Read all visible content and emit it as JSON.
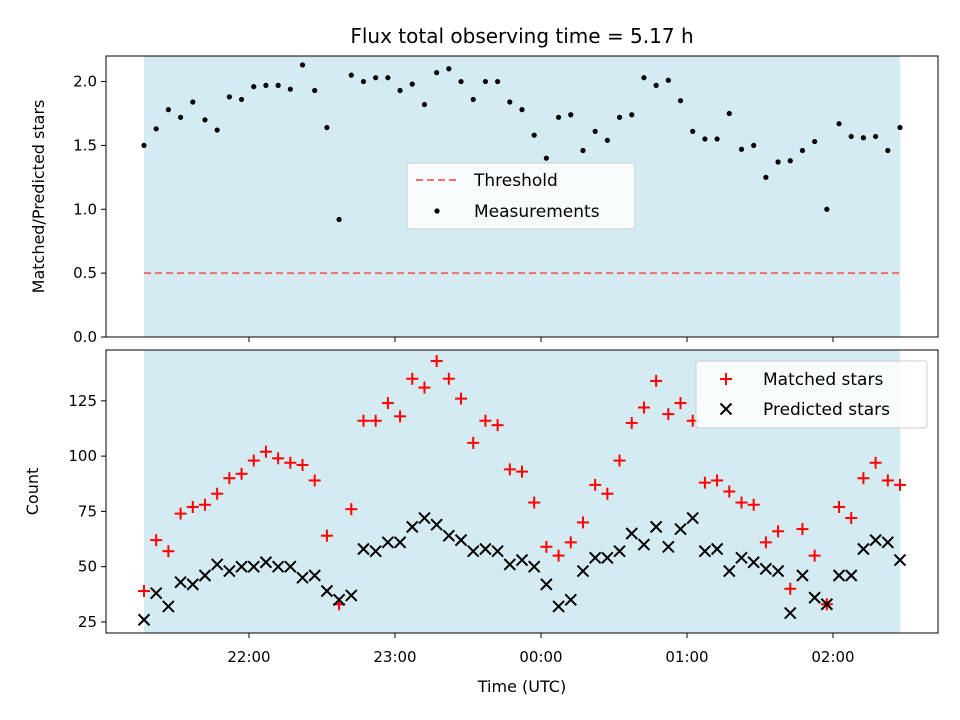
{
  "chart_data": [
    {
      "type": "scatter",
      "title": "Flux total observing time = 5.17 h",
      "xlabel": "",
      "ylabel": "Matched/Predicted stars",
      "ylim": [
        0,
        2.2
      ],
      "y_ticks": [
        "0.0",
        "0.5",
        "1.0",
        "1.5",
        "2.0"
      ],
      "legend": {
        "placement": "center",
        "entries": [
          "Threshold",
          "Measurements"
        ]
      },
      "threshold": 0.5,
      "colors": {
        "threshold": "#f07070",
        "measurements": "#000000",
        "shade": "#d4ebf1"
      },
      "series": [
        {
          "name": "Measurements",
          "values": [
            1.5,
            1.63,
            1.78,
            1.72,
            1.84,
            1.7,
            1.62,
            1.88,
            1.86,
            1.96,
            1.97,
            1.97,
            1.94,
            2.13,
            1.93,
            1.64,
            0.92,
            2.05,
            2.0,
            2.03,
            2.03,
            1.93,
            1.98,
            1.82,
            2.07,
            2.1,
            2.0,
            1.86,
            2.0,
            2.0,
            1.84,
            1.78,
            1.58,
            1.4,
            1.72,
            1.74,
            1.46,
            1.61,
            1.54,
            1.72,
            1.74,
            2.03,
            1.97,
            2.01,
            1.85,
            1.61,
            1.55,
            1.55,
            1.75,
            1.47,
            1.5,
            1.25,
            1.37,
            1.38,
            1.46,
            1.53,
            1.0,
            1.67,
            1.57,
            1.56,
            1.57,
            1.46,
            1.64
          ]
        }
      ]
    },
    {
      "type": "scatter",
      "title": "",
      "xlabel": "Time (UTC)",
      "ylabel": "Count",
      "ylim": [
        20,
        148
      ],
      "y_ticks": [
        "25",
        "50",
        "75",
        "100",
        "125"
      ],
      "x_ticks": [
        "22:00",
        "23:00",
        "00:00",
        "01:00",
        "02:00"
      ],
      "legend": {
        "placement": "top-right",
        "entries": [
          "Matched stars",
          "Predicted stars"
        ]
      },
      "colors": {
        "matched": "#ff0000",
        "predicted": "#000000",
        "shade": "#d4ebf1"
      },
      "series": [
        {
          "name": "Matched stars",
          "values": [
            39,
            62,
            57,
            74,
            77,
            78,
            83,
            90,
            92,
            98,
            102,
            99,
            97,
            96,
            89,
            64,
            33,
            76,
            116,
            116,
            124,
            118,
            135,
            131,
            143,
            135,
            126,
            106,
            116,
            114,
            94,
            93,
            79,
            59,
            55,
            61,
            70,
            87,
            83,
            98,
            115,
            122,
            134,
            119,
            124,
            116,
            88,
            89,
            84,
            79,
            78,
            61,
            66,
            40,
            67,
            55,
            33,
            77,
            72,
            90,
            97,
            89,
            87
          ]
        },
        {
          "name": "Predicted stars",
          "values": [
            26,
            38,
            32,
            43,
            42,
            46,
            51,
            48,
            50,
            50,
            52,
            50,
            50,
            45,
            46,
            39,
            35,
            37,
            58,
            57,
            61,
            61,
            68,
            72,
            69,
            64,
            62,
            57,
            58,
            57,
            51,
            53,
            50,
            42,
            32,
            35,
            48,
            54,
            54,
            57,
            65,
            60,
            68,
            59,
            67,
            72,
            57,
            58,
            48,
            54,
            52,
            49,
            48,
            29,
            46,
            36,
            33,
            46,
            46,
            58,
            62,
            61,
            53
          ]
        }
      ]
    }
  ]
}
